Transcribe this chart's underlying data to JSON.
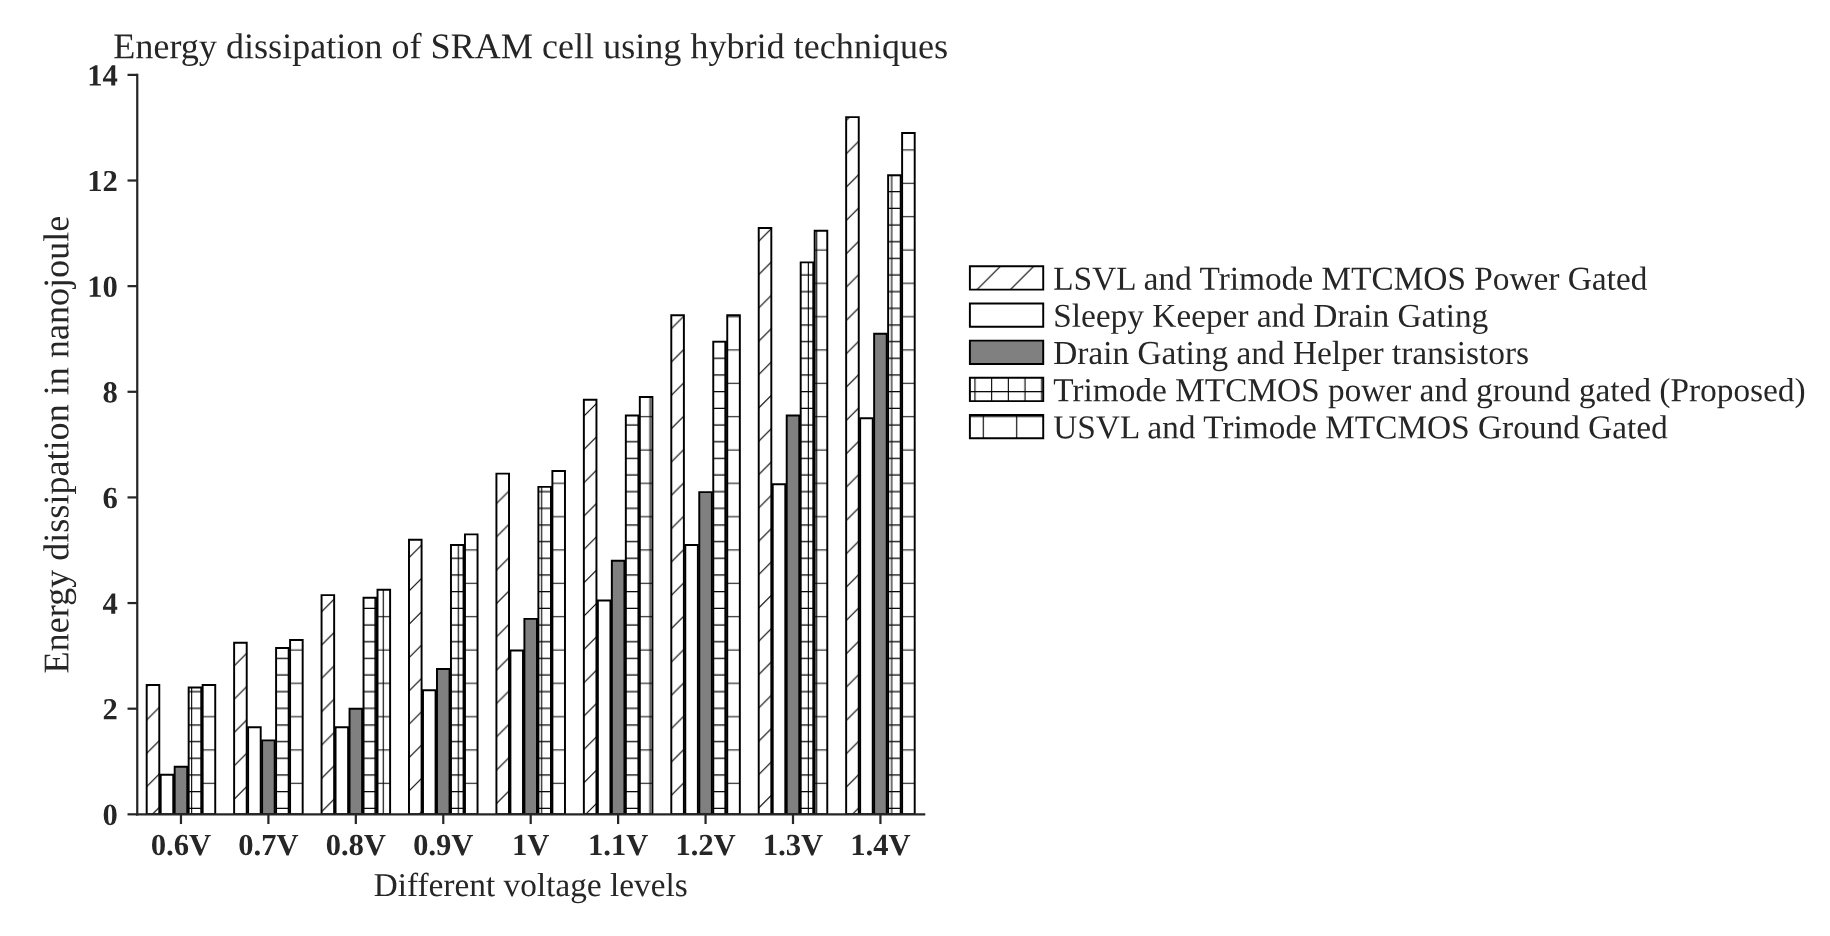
{
  "chart_data": {
    "type": "bar",
    "title": "Energy dissipation of SRAM cell using hybrid techniques",
    "xlabel": "Different voltage levels",
    "ylabel": "Energy dissipation in nanojoule",
    "categories": [
      "0.6V",
      "0.7V",
      "0.8V",
      "0.9V",
      "1V",
      "1.1V",
      "1.2V",
      "1.3V",
      "1.4V"
    ],
    "series": [
      {
        "name": "LSVL and Trimode MTCMOS Power Gated",
        "color": "#ffffff",
        "values": [
          2.45,
          3.25,
          4.15,
          5.2,
          6.45,
          7.85,
          9.45,
          11.1,
          13.2
        ]
      },
      {
        "name": "Sleepy Keeper and Drain Gating",
        "color": "#ffffff",
        "values": [
          0.75,
          1.65,
          1.65,
          2.35,
          3.1,
          4.05,
          5.1,
          6.25,
          7.5
        ]
      },
      {
        "name": "Drain Gating and Helper transistors",
        "color": "#808080",
        "values": [
          0.9,
          1.4,
          2.0,
          2.75,
          3.7,
          4.8,
          6.1,
          7.55,
          9.1
        ]
      },
      {
        "name": "Trimode MTCMOS power and ground gated (Proposed)",
        "color": "#ffffff",
        "values": [
          2.4,
          3.15,
          4.1,
          5.1,
          6.2,
          7.55,
          8.95,
          10.45,
          12.1
        ]
      },
      {
        "name": "USVL and Trimode MTCMOS Ground Gated",
        "color": "#ffffff",
        "values": [
          2.45,
          3.3,
          4.25,
          5.3,
          6.5,
          7.9,
          9.45,
          11.05,
          12.9
        ]
      }
    ],
    "ylim": [
      0,
      14
    ],
    "yticks": [
      0,
      2,
      4,
      6,
      8,
      10,
      12,
      14
    ],
    "grid": false,
    "legend": "right"
  }
}
